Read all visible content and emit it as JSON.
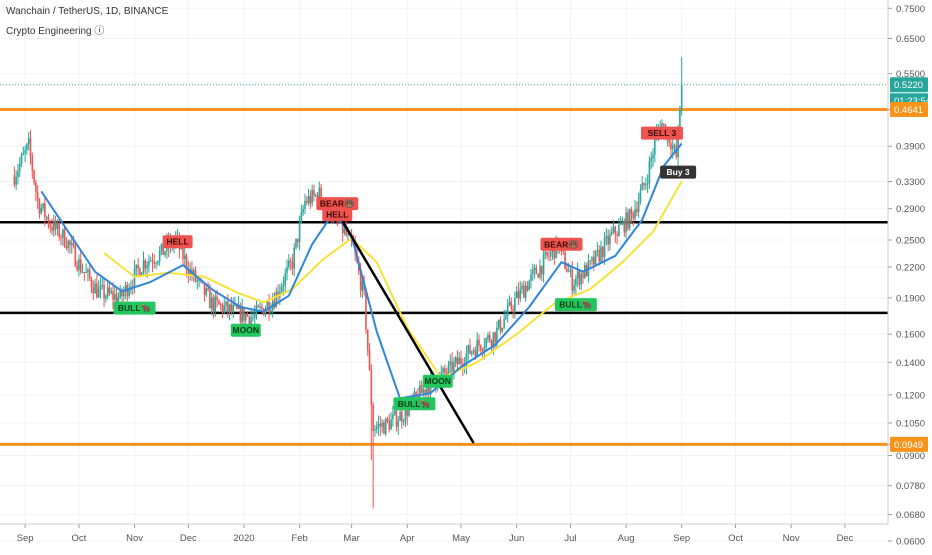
{
  "header": {
    "title": "Wanchain / TetherUS, 1D, BINANCE",
    "indicator": "Crypto Engineering ⓘ"
  },
  "colors": {
    "up": "#26a69a",
    "down": "#ef5350",
    "ema_fast": "#2f86d8",
    "ema_slow": "#f7e13a",
    "orange_level": "#f7931a",
    "black_level": "#000000",
    "sell_marker": "#ef5350",
    "buy_marker": "#22c55e",
    "price_tag": "#26a69a",
    "timer_tag": "#26a69a",
    "buy3_tag": "#333333"
  },
  "chart_data": {
    "type": "candlestick",
    "title": "Wanchain / TetherUS, 1D, BINANCE",
    "scale": "log",
    "x_ticks": [
      "Sep",
      "Oct",
      "Nov",
      "Dec",
      "2020",
      "Feb",
      "Mar",
      "Apr",
      "May",
      "Jun",
      "Jul",
      "Aug",
      "Sep",
      "Oct",
      "Nov",
      "Dec"
    ],
    "y_ticks": [
      "0.7500",
      "0.6500",
      "0.5500",
      "0.4641",
      "0.3900",
      "0.3300",
      "0.2900",
      "0.2500",
      "0.2200",
      "0.1900",
      "0.1600",
      "0.1400",
      "0.1200",
      "0.1050",
      "0.0949",
      "0.0900",
      "0.0780",
      "0.0680",
      "0.0600"
    ],
    "ylim": [
      0.0575,
      0.78
    ],
    "current_price": "0.5220",
    "countdown": "01:23:54",
    "horizontal_levels": [
      {
        "price": 0.4641,
        "label": "0.4641",
        "style": "orange"
      },
      {
        "price": 0.0949,
        "label": "0.0949",
        "style": "orange"
      },
      {
        "price": 0.272,
        "label": "",
        "style": "black"
      },
      {
        "price": 0.177,
        "label": "",
        "style": "black"
      }
    ],
    "trendline": {
      "from": [
        "2020-02-22",
        0.285
      ],
      "to": [
        "2020-05-08",
        0.0955
      ]
    },
    "signals": [
      {
        "date": "2019-11-01",
        "price": 0.181,
        "text": "BULL🐂",
        "kind": "buy"
      },
      {
        "date": "2019-11-25",
        "price": 0.248,
        "text": "HELL",
        "kind": "sell"
      },
      {
        "date": "2020-01-02",
        "price": 0.163,
        "text": "MOON",
        "kind": "buy"
      },
      {
        "date": "2020-02-22",
        "price": 0.297,
        "text": "BEAR🐻",
        "kind": "sell"
      },
      {
        "date": "2020-02-22",
        "price": 0.282,
        "text": "HELL",
        "kind": "sell"
      },
      {
        "date": "2020-04-05",
        "price": 0.115,
        "text": "BULL🐂",
        "kind": "buy"
      },
      {
        "date": "2020-04-18",
        "price": 0.128,
        "text": "MOON",
        "kind": "buy"
      },
      {
        "date": "2020-06-26",
        "price": 0.245,
        "text": "BEAR🐻",
        "kind": "sell"
      },
      {
        "date": "2020-07-04",
        "price": 0.184,
        "text": "BULL🐂",
        "kind": "buy"
      },
      {
        "date": "2020-08-21",
        "price": 0.415,
        "text": "SELL 3",
        "kind": "sell"
      },
      {
        "date": "2020-08-30",
        "price": 0.345,
        "text": "Buy 3",
        "kind": "buy3"
      }
    ],
    "price_anchors": [
      [
        "2019-08-26",
        0.34
      ],
      [
        "2019-09-03",
        0.39
      ],
      [
        "2019-09-08",
        0.3
      ],
      [
        "2019-09-15",
        0.27
      ],
      [
        "2019-09-24",
        0.25
      ],
      [
        "2019-10-02",
        0.22
      ],
      [
        "2019-10-12",
        0.195
      ],
      [
        "2019-10-24",
        0.19
      ],
      [
        "2019-11-06",
        0.225
      ],
      [
        "2019-11-16",
        0.235
      ],
      [
        "2019-11-24",
        0.25
      ],
      [
        "2019-12-02",
        0.215
      ],
      [
        "2019-12-14",
        0.185
      ],
      [
        "2019-12-26",
        0.178
      ],
      [
        "2020-01-06",
        0.173
      ],
      [
        "2020-01-18",
        0.19
      ],
      [
        "2020-01-28",
        0.225
      ],
      [
        "2020-02-04",
        0.3
      ],
      [
        "2020-02-12",
        0.31
      ],
      [
        "2020-02-22",
        0.275
      ],
      [
        "2020-03-02",
        0.24
      ],
      [
        "2020-03-08",
        0.19
      ],
      [
        "2020-03-13",
        0.103
      ],
      [
        "2020-03-20",
        0.104
      ],
      [
        "2020-03-30",
        0.11
      ],
      [
        "2020-04-12",
        0.125
      ],
      [
        "2020-04-25",
        0.135
      ],
      [
        "2020-05-08",
        0.15
      ],
      [
        "2020-05-20",
        0.16
      ],
      [
        "2020-06-01",
        0.19
      ],
      [
        "2020-06-12",
        0.215
      ],
      [
        "2020-06-24",
        0.245
      ],
      [
        "2020-07-02",
        0.205
      ],
      [
        "2020-07-12",
        0.22
      ],
      [
        "2020-07-24",
        0.255
      ],
      [
        "2020-08-04",
        0.28
      ],
      [
        "2020-08-12",
        0.33
      ],
      [
        "2020-08-20",
        0.44
      ],
      [
        "2020-08-26",
        0.4
      ],
      [
        "2020-08-29",
        0.37
      ],
      [
        "2020-09-01",
        0.522
      ]
    ],
    "ema_fast_anchors": [
      [
        "2019-09-10",
        0.315
      ],
      [
        "2019-09-25",
        0.26
      ],
      [
        "2019-10-10",
        0.215
      ],
      [
        "2019-10-25",
        0.196
      ],
      [
        "2019-11-10",
        0.205
      ],
      [
        "2019-11-28",
        0.222
      ],
      [
        "2019-12-14",
        0.198
      ],
      [
        "2019-12-30",
        0.182
      ],
      [
        "2020-01-12",
        0.178
      ],
      [
        "2020-01-26",
        0.192
      ],
      [
        "2020-02-08",
        0.245
      ],
      [
        "2020-02-20",
        0.285
      ],
      [
        "2020-03-01",
        0.255
      ],
      [
        "2020-03-15",
        0.162
      ],
      [
        "2020-03-28",
        0.118
      ],
      [
        "2020-04-14",
        0.121
      ],
      [
        "2020-05-01",
        0.137
      ],
      [
        "2020-05-20",
        0.152
      ],
      [
        "2020-06-08",
        0.182
      ],
      [
        "2020-06-26",
        0.225
      ],
      [
        "2020-07-08",
        0.215
      ],
      [
        "2020-07-26",
        0.232
      ],
      [
        "2020-08-10",
        0.275
      ],
      [
        "2020-08-22",
        0.355
      ],
      [
        "2020-09-01",
        0.395
      ]
    ],
    "ema_slow_anchors": [
      [
        "2019-10-15",
        0.235
      ],
      [
        "2019-11-01",
        0.21
      ],
      [
        "2019-11-20",
        0.214
      ],
      [
        "2019-12-10",
        0.21
      ],
      [
        "2019-12-28",
        0.195
      ],
      [
        "2020-01-12",
        0.186
      ],
      [
        "2020-01-28",
        0.198
      ],
      [
        "2020-02-14",
        0.228
      ],
      [
        "2020-03-01",
        0.252
      ],
      [
        "2020-03-15",
        0.225
      ],
      [
        "2020-04-01",
        0.165
      ],
      [
        "2020-04-20",
        0.13
      ],
      [
        "2020-05-10",
        0.14
      ],
      [
        "2020-06-01",
        0.16
      ],
      [
        "2020-06-22",
        0.185
      ],
      [
        "2020-07-12",
        0.198
      ],
      [
        "2020-07-30",
        0.225
      ],
      [
        "2020-08-16",
        0.26
      ],
      [
        "2020-09-01",
        0.33
      ]
    ]
  }
}
